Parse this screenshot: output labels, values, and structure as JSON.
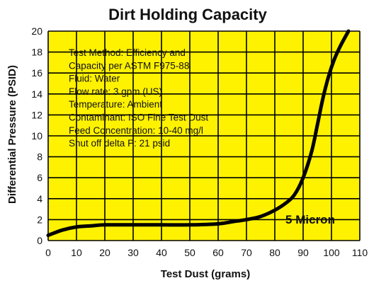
{
  "chart_data": {
    "type": "line",
    "title": "Dirt Holding Capacity",
    "xlabel": "Test Dust (grams)",
    "ylabel": "Differential Pressure (PSID)",
    "xlim": [
      0,
      110
    ],
    "ylim": [
      0,
      20
    ],
    "xticks": [
      0,
      10,
      20,
      30,
      40,
      50,
      60,
      70,
      80,
      90,
      100,
      110
    ],
    "yticks": [
      0,
      2,
      4,
      6,
      8,
      10,
      12,
      14,
      16,
      18,
      20
    ],
    "grid": true,
    "background_color": "#FFF200",
    "grid_color": "#000000",
    "line_color": "#000000",
    "annotations": [
      "Test Method: Efficiency and",
      "Capacity per ASTM F975-88",
      "Fluid: Water",
      "Flow rate: 3 gpm (US)",
      "Temperature: Ambient",
      "Contaminant: ISO Fine Test Dust",
      "Feed Concentration: 10-40 mg/l",
      "Shut off delta P: 21 psid"
    ],
    "series": [
      {
        "name": "5 Micron",
        "x": [
          0,
          5,
          10,
          15,
          20,
          30,
          40,
          50,
          60,
          65,
          70,
          75,
          80,
          84,
          87,
          90,
          93,
          95,
          97,
          99,
          101,
          103,
          106
        ],
        "y": [
          0.5,
          1.0,
          1.3,
          1.4,
          1.5,
          1.5,
          1.5,
          1.5,
          1.6,
          1.8,
          2.0,
          2.3,
          2.9,
          3.6,
          4.4,
          6.0,
          8.5,
          11.0,
          13.6,
          15.7,
          17.3,
          18.5,
          20.0
        ]
      }
    ]
  }
}
